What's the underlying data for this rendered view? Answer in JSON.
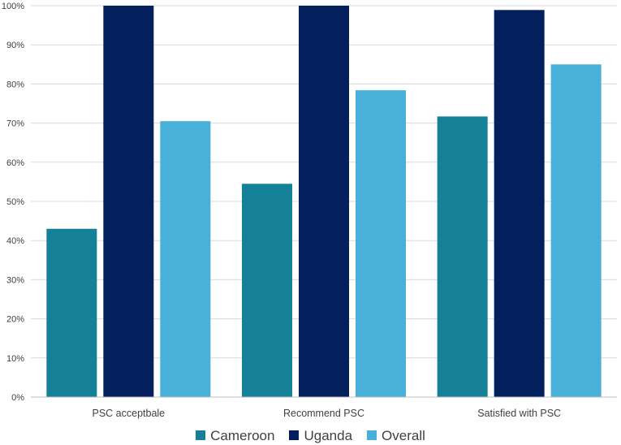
{
  "chart_data": {
    "type": "bar",
    "categories": [
      "PSC acceptbale",
      "Recommend PSC",
      "Satisfied with PSC"
    ],
    "series": [
      {
        "name": "Cameroon",
        "color": "#148198",
        "values": [
          43,
          54.5,
          71.7
        ]
      },
      {
        "name": "Uganda",
        "color": "#031f5c",
        "values": [
          100,
          100,
          98.9
        ]
      },
      {
        "name": "Overall",
        "color": "#49b1d9",
        "values": [
          70.5,
          78.4,
          85
        ]
      }
    ],
    "ylim": [
      0,
      100
    ],
    "yticks": [
      "0%",
      "10%",
      "20%",
      "30%",
      "40%",
      "50%",
      "60%",
      "70%",
      "80%",
      "90%",
      "100%"
    ],
    "grid": true,
    "legend_position": "bottom",
    "title": "",
    "xlabel": "",
    "ylabel": ""
  }
}
